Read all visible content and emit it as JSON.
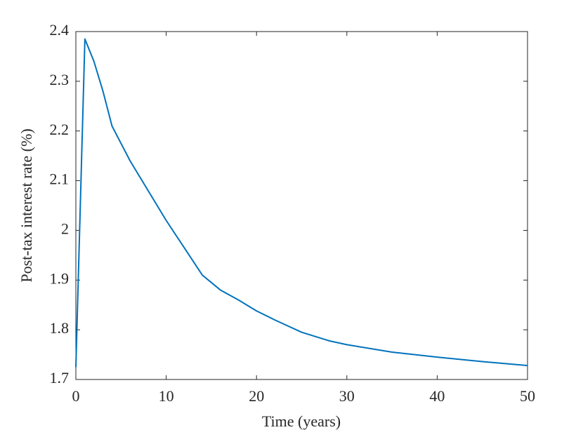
{
  "chart_data": {
    "type": "line",
    "x_label": "Time (years)",
    "y_label": "Post-tax interest rate (%)",
    "x": [
      0,
      1,
      2,
      3,
      4,
      5,
      6,
      8,
      10,
      12,
      14,
      16,
      18,
      20,
      22,
      25,
      28,
      30,
      35,
      40,
      45,
      50
    ],
    "series": [
      {
        "name": "Post-tax interest rate",
        "color": "#0072bd",
        "values": [
          1.725,
          2.385,
          2.34,
          2.28,
          2.21,
          2.175,
          2.14,
          2.08,
          2.02,
          1.965,
          1.91,
          1.88,
          1.86,
          1.838,
          1.82,
          1.795,
          1.778,
          1.77,
          1.755,
          1.745,
          1.736,
          1.728
        ]
      }
    ],
    "xlim": [
      0,
      50
    ],
    "xticks": [
      0,
      10,
      20,
      30,
      40,
      50
    ],
    "ylim": [
      1.7,
      2.4
    ],
    "yticks": [
      1.7,
      1.8,
      1.9,
      2,
      2.1,
      2.2,
      2.3,
      2.4
    ]
  }
}
